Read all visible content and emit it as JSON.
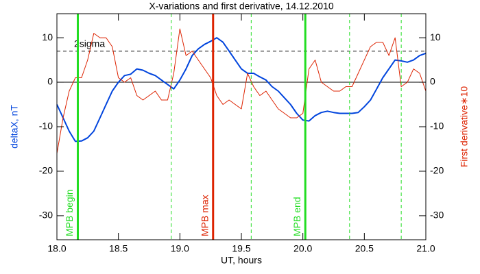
{
  "chart_data": {
    "type": "line",
    "title": "X-variations and first derivative, 14.12.2010",
    "xlabel": "UT, hours",
    "ylabel": "deltaX, nT",
    "y2label": "First derivative∗10",
    "xlim": [
      18.0,
      21.0
    ],
    "xticks": [
      {
        "value": 18.0,
        "label": "18.0"
      },
      {
        "value": 18.5,
        "label": "18.5"
      },
      {
        "value": 19.0,
        "label": "19.0"
      },
      {
        "value": 19.5,
        "label": "19.5"
      },
      {
        "value": 20.0,
        "label": "20.0"
      },
      {
        "value": 20.5,
        "label": "20.5"
      },
      {
        "value": 21.0,
        "label": "21.0"
      }
    ],
    "ylim": [
      -35.4,
      15.4
    ],
    "yticks": [
      -30,
      -20,
      -10,
      0,
      10
    ],
    "y2lim": [
      -35.4,
      15.4
    ],
    "y2ticks": [
      -30,
      -20,
      -10,
      0,
      10
    ],
    "x": [
      18.0,
      18.05,
      18.1,
      18.15,
      18.2,
      18.25,
      18.3,
      18.35,
      18.4,
      18.45,
      18.5,
      18.55,
      18.6,
      18.65,
      18.7,
      18.75,
      18.8,
      18.85,
      18.9,
      18.95,
      19.0,
      19.05,
      19.1,
      19.15,
      19.2,
      19.25,
      19.3,
      19.35,
      19.4,
      19.45,
      19.5,
      19.55,
      19.6,
      19.65,
      19.7,
      19.75,
      19.8,
      19.85,
      19.9,
      19.95,
      20.0,
      20.05,
      20.1,
      20.15,
      20.2,
      20.25,
      20.3,
      20.35,
      20.4,
      20.45,
      20.5,
      20.55,
      20.6,
      20.65,
      20.7,
      20.75,
      20.8,
      20.85,
      20.9,
      20.95,
      21.0
    ],
    "series": [
      {
        "name": "deltaX",
        "color": "#0044dd",
        "axis": "y",
        "width": 2,
        "values": [
          -5,
          -8,
          -11,
          -13.3,
          -13.2,
          -12.5,
          -11,
          -8,
          -5,
          -2,
          0,
          1.5,
          1.8,
          3,
          2.7,
          2,
          1.5,
          0.5,
          -0.5,
          -1.5,
          0.5,
          3,
          6,
          7.5,
          8.5,
          9.2,
          10,
          9,
          7,
          5,
          3,
          2,
          2,
          1.2,
          0.5,
          -1,
          -2,
          -3.5,
          -5,
          -7,
          -8.5,
          -8.7,
          -7.5,
          -6.8,
          -6.5,
          -6.8,
          -7,
          -7,
          -7,
          -6.8,
          -5.5,
          -4,
          -1.5,
          1,
          3,
          5,
          4.8,
          4.5,
          5,
          6,
          6.5
        ]
      },
      {
        "name": "First derivative∗10",
        "color": "#dd2200",
        "axis": "y2",
        "width": 1,
        "values": [
          -16,
          -8,
          -2,
          1,
          1,
          5,
          11,
          10,
          10,
          8,
          1,
          0,
          1,
          -3,
          -4,
          -3,
          -2,
          -4,
          -4,
          2,
          12,
          6,
          7,
          5,
          3,
          1,
          -3,
          -5,
          -4,
          -5,
          -6,
          2,
          -1,
          -3,
          -2,
          -4,
          -6,
          -7,
          -8,
          -8,
          -7,
          3,
          5,
          0,
          -1,
          -2,
          -2,
          -1,
          -1,
          2,
          5,
          8,
          9,
          9,
          6,
          10,
          -1,
          0,
          3,
          2,
          -2
        ]
      }
    ],
    "vlines": [
      {
        "x": 18.17,
        "color": "#22dd22",
        "style": "solid",
        "label": "MPB begin"
      },
      {
        "x": 18.93,
        "color": "#22dd22",
        "style": "dashed"
      },
      {
        "x": 19.27,
        "color": "#dd2200",
        "style": "solid",
        "label": "MPB max"
      },
      {
        "x": 19.58,
        "color": "#22dd22",
        "style": "dashed"
      },
      {
        "x": 20.02,
        "color": "#22dd22",
        "style": "solid",
        "label": "MPB end"
      },
      {
        "x": 20.38,
        "color": "#22dd22",
        "style": "dashed"
      },
      {
        "x": 20.8,
        "color": "#22dd22",
        "style": "dashed"
      }
    ],
    "hlines": [
      {
        "y": 7,
        "color": "#000000",
        "style": "dashed",
        "label": "2sigma"
      },
      {
        "y": 0,
        "color": "#000000",
        "style": "solid"
      }
    ]
  }
}
